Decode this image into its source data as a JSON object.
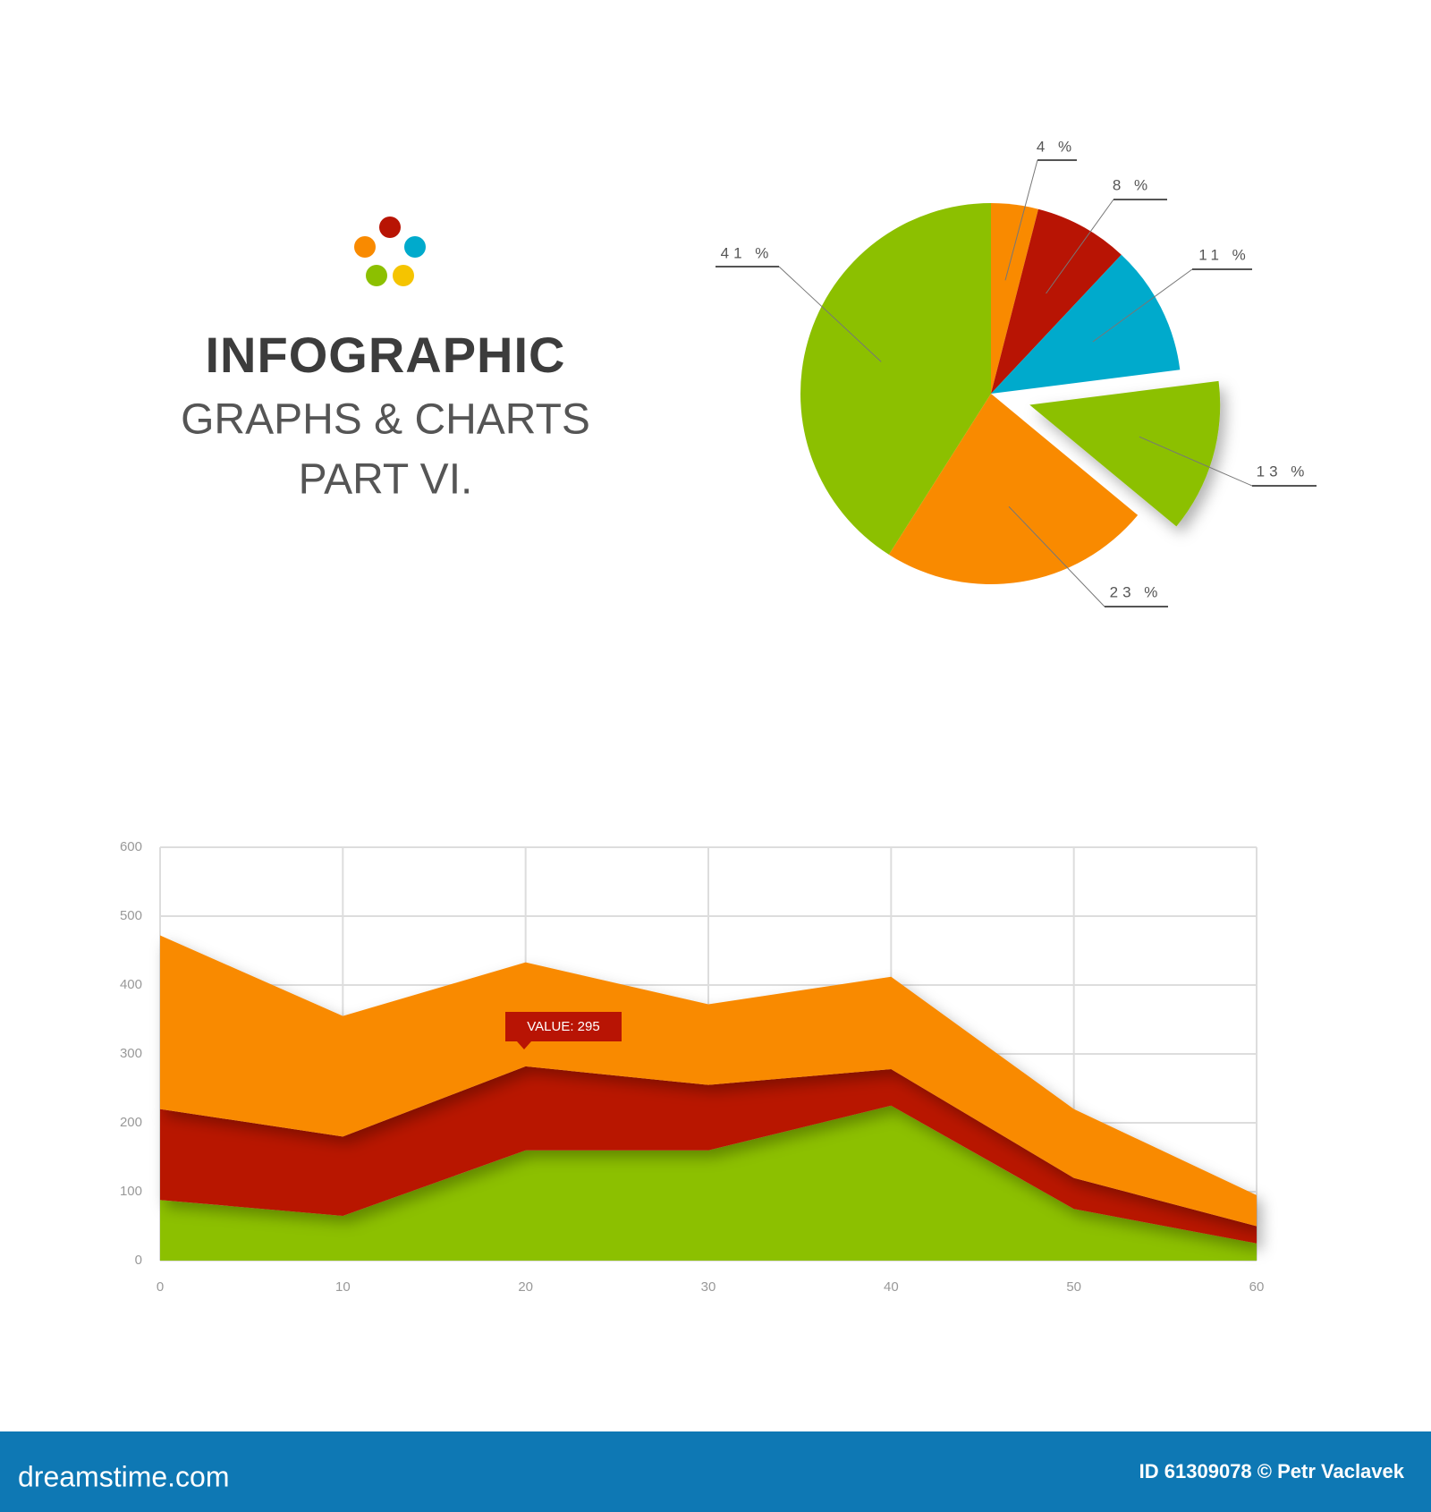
{
  "header": {
    "title": "INFOGRAPHIC",
    "subtitle": "GRAPHS & CHARTS",
    "part": "PART VI."
  },
  "chart_data": [
    {
      "type": "pie",
      "values": [
        4,
        8,
        11,
        13,
        23,
        41
      ],
      "value_labels": [
        "4 %",
        "8 %",
        "11 %",
        "13 %",
        "23 %",
        "41 %"
      ],
      "colors": [
        "#f98a00",
        "#b81404",
        "#00aacc",
        "#8cc000",
        "#f98a00",
        "#8cc000"
      ],
      "exploded_slice": 3
    },
    {
      "type": "stacked_area",
      "x": [
        0,
        10,
        20,
        30,
        40,
        50,
        60
      ],
      "series": [
        {
          "color": "#8cc000",
          "values": [
            88,
            65,
            160,
            160,
            225,
            75,
            25
          ]
        },
        {
          "color": "#b81404",
          "values": [
            132,
            115,
            122,
            95,
            53,
            45,
            25
          ]
        },
        {
          "color": "#f98a00",
          "values": [
            252,
            175,
            151,
            117,
            134,
            100,
            45
          ]
        }
      ],
      "xlim": [
        0,
        60
      ],
      "xticks": [
        0,
        10,
        20,
        30,
        40,
        50,
        60
      ],
      "ylim": [
        0,
        600
      ],
      "yticks": [
        0,
        100,
        200,
        300,
        400,
        500,
        600
      ],
      "grid": true,
      "annotation": "VALUE: 295"
    }
  ],
  "footer": {
    "site": "dreamstime.com",
    "credit": "ID 61309078 © Petr Vaclavek"
  }
}
